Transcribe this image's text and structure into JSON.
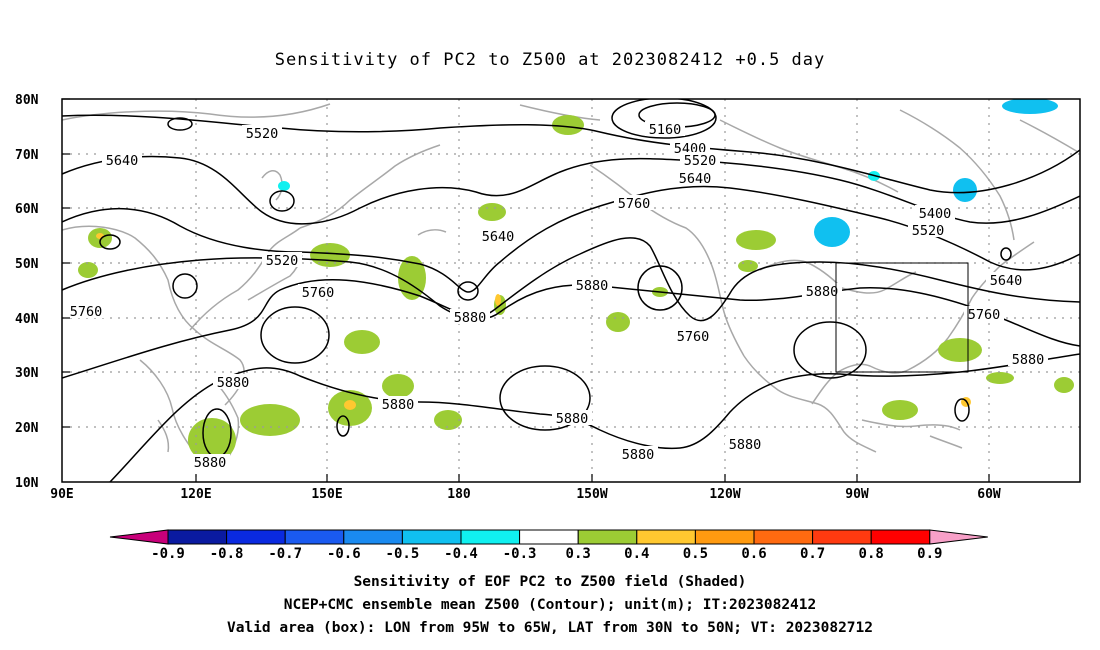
{
  "title": "Sensitivity of PC2 to Z500 at 2023082412 +0.5 day",
  "lat_labels": [
    "80N",
    "70N",
    "60N",
    "50N",
    "40N",
    "30N",
    "20N",
    "10N"
  ],
  "lon_labels": [
    "90E",
    "120E",
    "150E",
    "180",
    "150W",
    "120W",
    "90W",
    "60W"
  ],
  "contour_labels": [
    "5520",
    "5640",
    "5160",
    "5400",
    "5520",
    "5640",
    "5760",
    "5400",
    "5520",
    "5640",
    "5520",
    "5760",
    "5880",
    "5640",
    "5880",
    "5760",
    "5880",
    "5760",
    "5880",
    "5880",
    "5880",
    "5880",
    "5880",
    "5880",
    "5880",
    "5760"
  ],
  "colorbar": {
    "labels": [
      "-0.9",
      "-0.8",
      "-0.7",
      "-0.6",
      "-0.5",
      "-0.4",
      "-0.3",
      "0.3",
      "0.4",
      "0.5",
      "0.6",
      "0.7",
      "0.8",
      "0.9"
    ],
    "colors": [
      "#c8007a",
      "#0a1aa0",
      "#0a2ae0",
      "#1a5af0",
      "#1a8af0",
      "#10c0f0",
      "#10f0f0",
      "#ffffff",
      "#9ccc34",
      "#ffc830",
      "#ff9a10",
      "#ff6a10",
      "#ff3a10",
      "#ff0000",
      "#f8a0c8"
    ]
  },
  "captions": [
    "Sensitivity of EOF PC2 to Z500 field (Shaded)",
    "NCEP+CMC ensemble mean Z500 (Contour); unit(m); IT:2023082412",
    "Valid area (box): LON from 95W to 65W, LAT from 30N to 50N; VT: 2023082712"
  ],
  "valid_box": {
    "lon_west": "95W",
    "lon_east": "65W",
    "lat_south": "30N",
    "lat_north": "50N"
  }
}
